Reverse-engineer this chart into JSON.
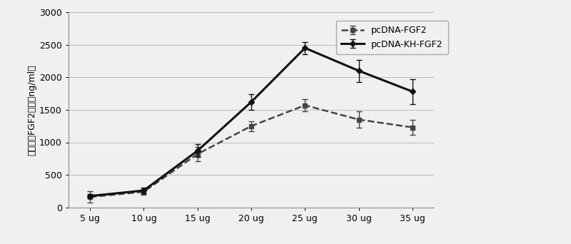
{
  "x_labels": [
    "5 ug",
    "10 ug",
    "15 ug",
    "20 ug",
    "25 ug",
    "30 ug",
    "35 ug"
  ],
  "x_values": [
    1,
    2,
    3,
    4,
    5,
    6,
    7
  ],
  "line1_label": "pcDNA-FGF2",
  "line1_values": [
    160,
    240,
    820,
    1250,
    1570,
    1350,
    1230
  ],
  "line1_errors": [
    90,
    45,
    110,
    75,
    95,
    130,
    110
  ],
  "line2_label": "pcDNA-KH-FGF2",
  "line2_values": [
    175,
    260,
    870,
    1620,
    2450,
    2100,
    1780
  ],
  "line2_errors": [
    25,
    45,
    100,
    120,
    95,
    170,
    195
  ],
  "ylabel": "上清中的FGF2含量（ng/ml）",
  "ylim": [
    0,
    3000
  ],
  "yticks": [
    0,
    500,
    1000,
    1500,
    2000,
    2500,
    3000
  ],
  "line1_color": "#444444",
  "line2_color": "#111111",
  "line1_style": "--",
  "line2_style": "-",
  "line1_linewidth": 1.8,
  "line2_linewidth": 2.2,
  "marker1": "s",
  "marker2": "D",
  "marker_size": 4,
  "grid_color": "#bbbbbb",
  "background_color": "#f0f0f0",
  "legend_fontsize": 9,
  "axis_fontsize": 9,
  "tick_fontsize": 9
}
